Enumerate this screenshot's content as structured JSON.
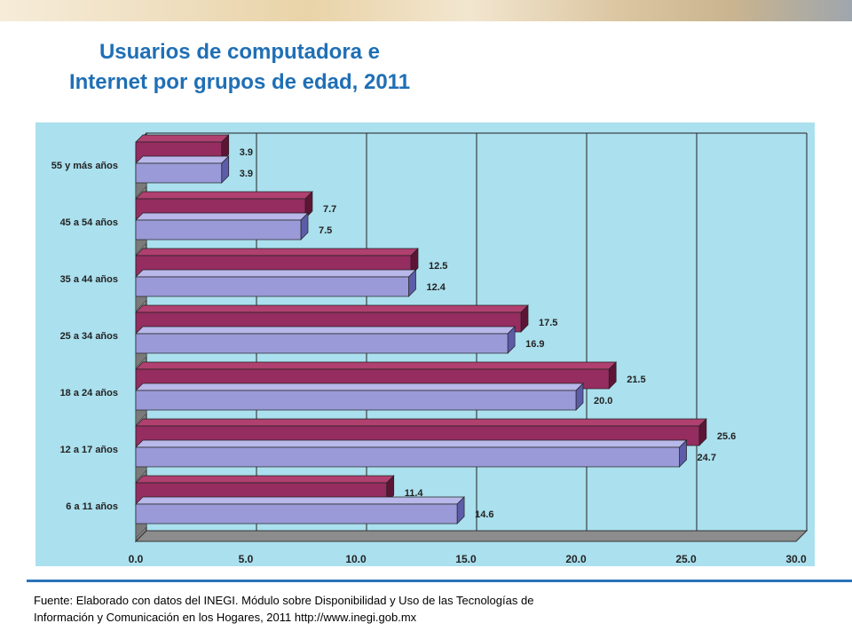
{
  "title": {
    "line1": "Usuarios de computadora e",
    "line2": "Internet por grupos de edad, 2011"
  },
  "colors": {
    "chart_background": "#abe0ee",
    "series_computadora": "#952d60",
    "series_internet": "#9a9ad8",
    "title": "#1f6fb5",
    "divider": "#2a73b8"
  },
  "chart_data": {
    "type": "bar",
    "orientation": "horizontal",
    "categories": [
      "55 y más años",
      "45 a 54 años",
      "35 a 44 años",
      "25 a 34 años",
      "18 a 24 años",
      "12 a 17 años",
      "6 a 11 años"
    ],
    "series": [
      {
        "values": [
          3.9,
          7.7,
          12.5,
          17.5,
          21.5,
          25.6,
          11.4
        ],
        "labels": [
          "3.9",
          "7.7",
          "12.5",
          "17.5",
          "21.5",
          "25.6",
          "11.4"
        ]
      },
      {
        "values": [
          3.9,
          7.5,
          12.4,
          16.9,
          20.0,
          24.7,
          14.6
        ],
        "labels": [
          "3.9",
          "7.5",
          "12.4",
          "16.9",
          "20.0",
          "24.7",
          "14.6"
        ]
      }
    ],
    "xlim": [
      0,
      30
    ],
    "xticks": [
      "0.0",
      "5.0",
      "10.0",
      "15.0",
      "20.0",
      "25.0",
      "30.0"
    ],
    "grid": true,
    "legend": "none"
  },
  "source": {
    "line1": "Fuente: Elaborado con datos del INEGI. Módulo sobre Disponibilidad y Uso de las Tecnologías de",
    "line2": "Información y Comunicación en los Hogares, 2011 http://www.inegi.gob.mx"
  }
}
